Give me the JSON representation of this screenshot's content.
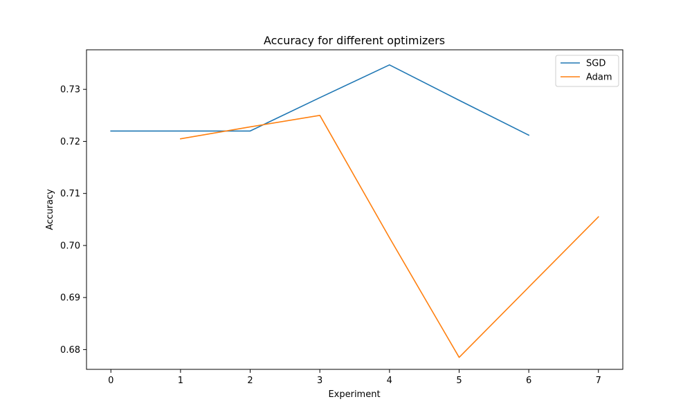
{
  "chart_data": {
    "type": "line",
    "title": "Accuracy for different optimizers",
    "xlabel": "Experiment",
    "ylabel": "Accuracy",
    "xlim": [
      -0.35,
      7.35
    ],
    "ylim": [
      0.6762,
      0.7376
    ],
    "xticks": [
      "0",
      "1",
      "2",
      "3",
      "4",
      "5",
      "6",
      "7"
    ],
    "yticks": [
      "0.68",
      "0.69",
      "0.70",
      "0.71",
      "0.72",
      "0.73"
    ],
    "grid": false,
    "legend_position": "top-right",
    "series": [
      {
        "name": "SGD",
        "color": "#1f77b4",
        "x": [
          0,
          1,
          2,
          3,
          4,
          5,
          6
        ],
        "y": [
          0.722,
          0.722,
          0.722,
          0.7284,
          0.7347,
          0.7279,
          0.7212
        ]
      },
      {
        "name": "Adam",
        "color": "#ff7f0e",
        "x": [
          1,
          2,
          3,
          4,
          5,
          6,
          7
        ],
        "y": [
          0.7205,
          0.7228,
          0.725,
          0.7015,
          0.6785,
          0.692,
          0.7055
        ]
      }
    ]
  }
}
